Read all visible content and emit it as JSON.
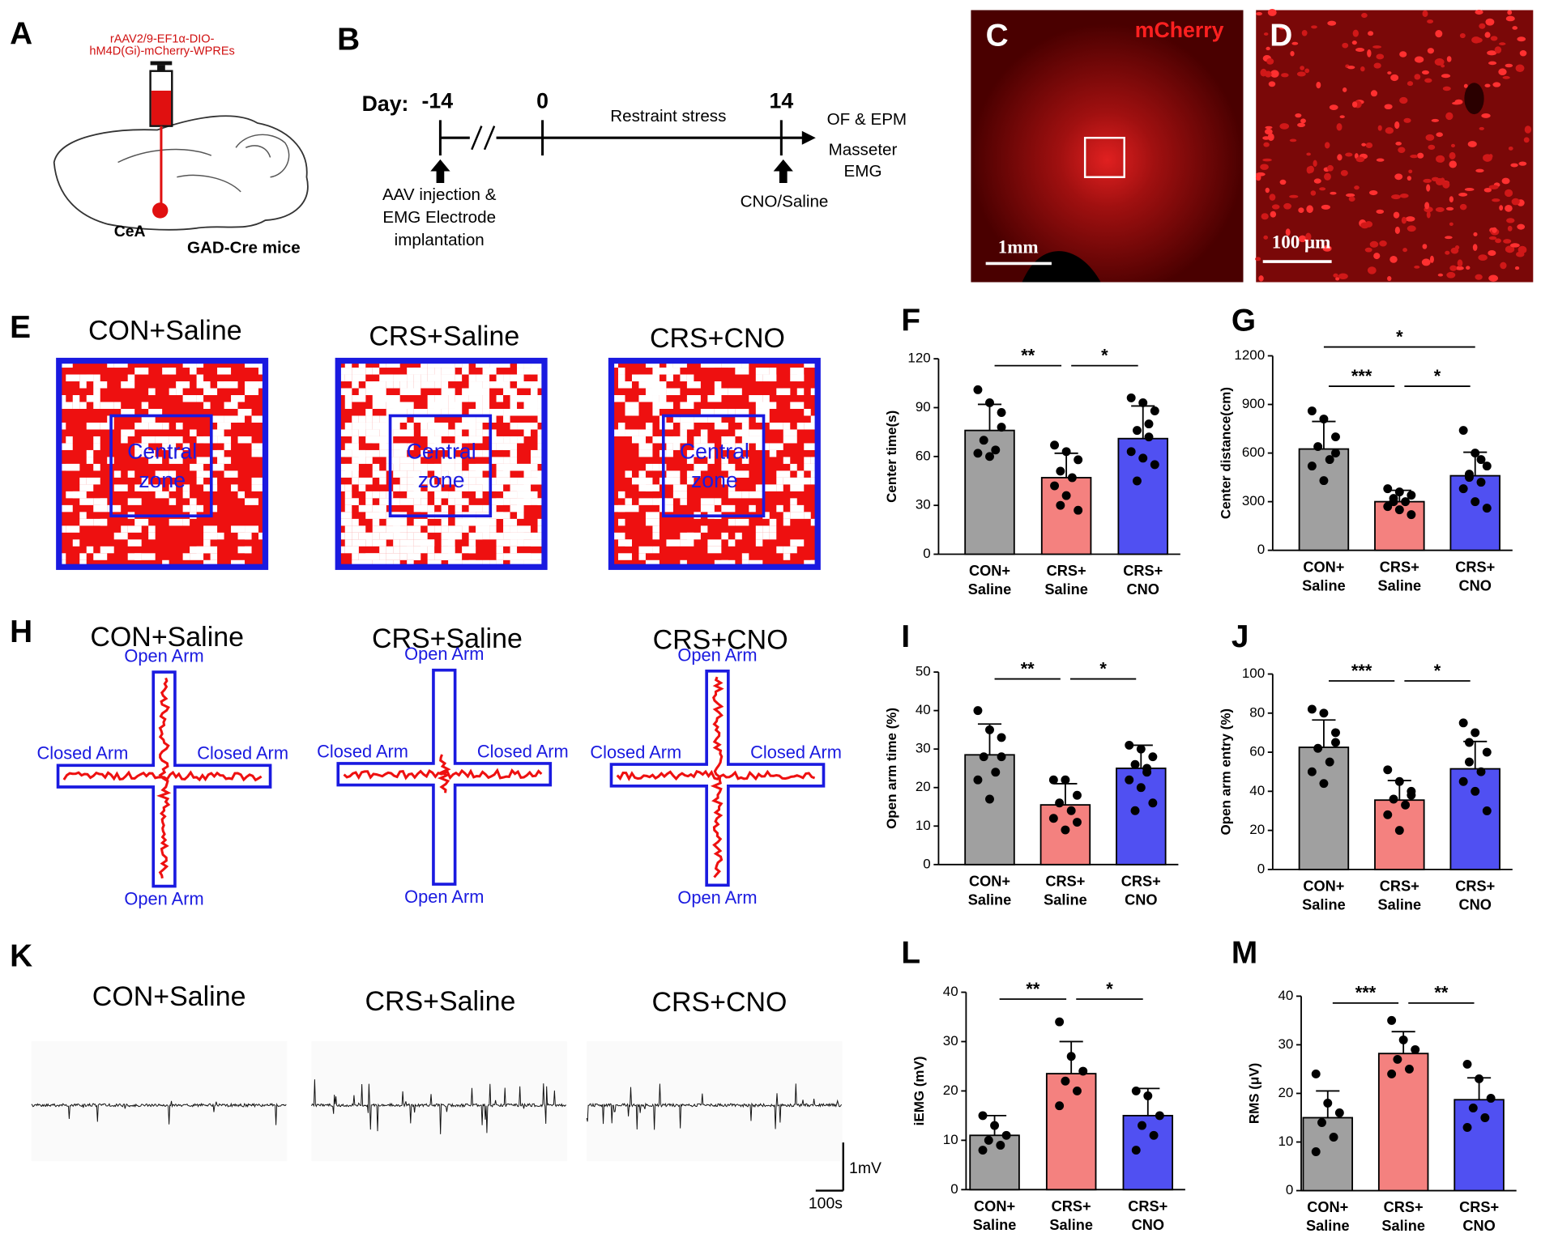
{
  "panels": {
    "A": {
      "letter": "A",
      "virus": [
        "rAAV2/9-EF1α-DIO-",
        "hM4D(Gi)-mCherry-WPREs"
      ],
      "region": "CeA",
      "mouse": "GAD-Cre mice"
    },
    "B": {
      "letter": "B",
      "day_label": "Day:",
      "days": [
        -14,
        0,
        14
      ],
      "period": "Restraint stress",
      "outcome": [
        "OF & EPM",
        "Masseter",
        "EMG"
      ],
      "injection": [
        "AAV injection &",
        "EMG Electrode",
        "implantation"
      ],
      "treatment": "CNO/Saline"
    },
    "C": {
      "letter": "C",
      "stain": "mCherry",
      "scale": "1mm"
    },
    "D": {
      "letter": "D",
      "scale": "100 μm"
    },
    "E": {
      "letter": "E",
      "groups": [
        "CON+Saline",
        "CRS+Saline",
        "CRS+CNO"
      ],
      "zone": [
        "Central",
        "zone"
      ]
    },
    "H": {
      "letter": "H",
      "groups": [
        "CON+Saline",
        "CRS+Saline",
        "CRS+CNO"
      ],
      "open_arm": "Open Arm",
      "closed_arm": "Closed Arm"
    },
    "K": {
      "letter": "K",
      "groups": [
        "CON+Saline",
        "CRS+Saline",
        "CRS+CNO"
      ],
      "scale_y": "1mV",
      "scale_x": "100s"
    }
  },
  "chart_data": [
    {
      "type": "bar",
      "letter": "F",
      "ylabel": "Center time(s)",
      "categories": [
        [
          "CON+",
          "Saline"
        ],
        [
          "CRS+",
          "Saline"
        ],
        [
          "CRS+",
          "CNO"
        ]
      ],
      "colors": [
        "#a0a0a0",
        "#f4817f",
        "#5050f2"
      ],
      "values": [
        76,
        47,
        71
      ],
      "errors": [
        16,
        15,
        20
      ],
      "points": [
        [
          101,
          93,
          87,
          70,
          64,
          62,
          60,
          78
        ],
        [
          67,
          63,
          58,
          51,
          47,
          42,
          36,
          27,
          30
        ],
        [
          96,
          93,
          88,
          76,
          72,
          63,
          59,
          55,
          45,
          80
        ]
      ],
      "ylim": [
        0,
        120
      ],
      "yticks": [
        0,
        30,
        60,
        90,
        120
      ],
      "annotations": [
        {
          "text": "**",
          "from": 0,
          "to": 1
        },
        {
          "text": "*",
          "from": 1,
          "to": 2
        }
      ]
    },
    {
      "type": "bar",
      "letter": "G",
      "ylabel": "Center distance(cm)",
      "categories": [
        [
          "CON+",
          "Saline"
        ],
        [
          "CRS+",
          "Saline"
        ],
        [
          "CRS+",
          "CNO"
        ]
      ],
      "colors": [
        "#a0a0a0",
        "#f4817f",
        "#5050f2"
      ],
      "values": [
        625,
        300,
        460
      ],
      "errors": [
        170,
        70,
        145
      ],
      "points": [
        [
          860,
          810,
          700,
          640,
          560,
          520,
          430,
          600
        ],
        [
          380,
          360,
          340,
          320,
          300,
          270,
          250,
          220,
          300
        ],
        [
          740,
          600,
          520,
          470,
          420,
          380,
          300,
          260,
          450,
          560
        ]
      ],
      "ylim": [
        0,
        1200
      ],
      "yticks": [
        0,
        300,
        600,
        900,
        1200
      ],
      "annotations": [
        {
          "text": "***",
          "from": 0,
          "to": 1
        },
        {
          "text": "*",
          "from": 1,
          "to": 2
        },
        {
          "text": "*",
          "from": 0,
          "to": 2
        }
      ]
    },
    {
      "type": "bar",
      "letter": "I",
      "ylabel": "Open arm time (%)",
      "categories": [
        [
          "CON+",
          "Saline"
        ],
        [
          "CRS+",
          "Saline"
        ],
        [
          "CRS+",
          "CNO"
        ]
      ],
      "colors": [
        "#a0a0a0",
        "#f4817f",
        "#5050f2"
      ],
      "values": [
        28.5,
        15.5,
        25
      ],
      "errors": [
        8,
        5.5,
        6
      ],
      "points": [
        [
          40,
          35,
          33,
          28,
          24,
          22,
          17,
          28
        ],
        [
          22,
          22,
          18,
          16,
          14,
          12,
          9,
          11
        ],
        [
          31,
          30,
          28,
          26,
          24,
          22,
          20,
          16,
          14,
          25
        ]
      ],
      "ylim": [
        0,
        50
      ],
      "yticks": [
        0,
        10,
        20,
        30,
        40,
        50
      ],
      "annotations": [
        {
          "text": "**",
          "from": 0,
          "to": 1
        },
        {
          "text": "*",
          "from": 1,
          "to": 2
        }
      ]
    },
    {
      "type": "bar",
      "letter": "J",
      "ylabel": "Open arm entry (%)",
      "categories": [
        [
          "CON+",
          "Saline"
        ],
        [
          "CRS+",
          "Saline"
        ],
        [
          "CRS+",
          "CNO"
        ]
      ],
      "colors": [
        "#a0a0a0",
        "#f4817f",
        "#5050f2"
      ],
      "values": [
        62.5,
        35.5,
        51.5
      ],
      "errors": [
        14,
        10,
        14
      ],
      "points": [
        [
          82,
          80,
          70,
          62,
          55,
          50,
          44,
          65
        ],
        [
          51,
          45,
          40,
          36,
          33,
          28,
          20,
          38
        ],
        [
          75,
          70,
          60,
          55,
          50,
          45,
          40,
          30,
          65
        ]
      ],
      "ylim": [
        0,
        100
      ],
      "yticks": [
        0,
        20,
        40,
        60,
        80,
        100
      ],
      "annotations": [
        {
          "text": "***",
          "from": 0,
          "to": 1
        },
        {
          "text": "*",
          "from": 1,
          "to": 2
        }
      ]
    },
    {
      "type": "bar",
      "letter": "L",
      "ylabel": "iEMG (mV)",
      "categories": [
        [
          "CON+",
          "Saline"
        ],
        [
          "CRS+",
          "Saline"
        ],
        [
          "CRS+",
          "CNO"
        ]
      ],
      "colors": [
        "#a0a0a0",
        "#f4817f",
        "#5050f2"
      ],
      "values": [
        11,
        23.5,
        15
      ],
      "errors": [
        4,
        6.5,
        5.5
      ],
      "points": [
        [
          15,
          13,
          11,
          10,
          9,
          8
        ],
        [
          34,
          27,
          24,
          22,
          20,
          17
        ],
        [
          20,
          19,
          15,
          13,
          11,
          8
        ]
      ],
      "ylim": [
        0,
        40
      ],
      "yticks": [
        0,
        10,
        20,
        30,
        40
      ],
      "annotations": [
        {
          "text": "**",
          "from": 0,
          "to": 1
        },
        {
          "text": "*",
          "from": 1,
          "to": 2
        }
      ]
    },
    {
      "type": "bar",
      "letter": "M",
      "ylabel": "RMS (μV)",
      "categories": [
        [
          "CON+",
          "Saline"
        ],
        [
          "CRS+",
          "Saline"
        ],
        [
          "CRS+",
          "CNO"
        ]
      ],
      "colors": [
        "#a0a0a0",
        "#f4817f",
        "#5050f2"
      ],
      "values": [
        15,
        28.2,
        18.7
      ],
      "errors": [
        5.5,
        4.5,
        4.5
      ],
      "points": [
        [
          24,
          18,
          16,
          14,
          11,
          8
        ],
        [
          35,
          31,
          29,
          27,
          25,
          24
        ],
        [
          26,
          23,
          19,
          17,
          15,
          13
        ]
      ],
      "ylim": [
        0,
        40
      ],
      "yticks": [
        0,
        10,
        20,
        30,
        40
      ],
      "annotations": [
        {
          "text": "***",
          "from": 0,
          "to": 1
        },
        {
          "text": "**",
          "from": 1,
          "to": 2
        }
      ]
    }
  ]
}
